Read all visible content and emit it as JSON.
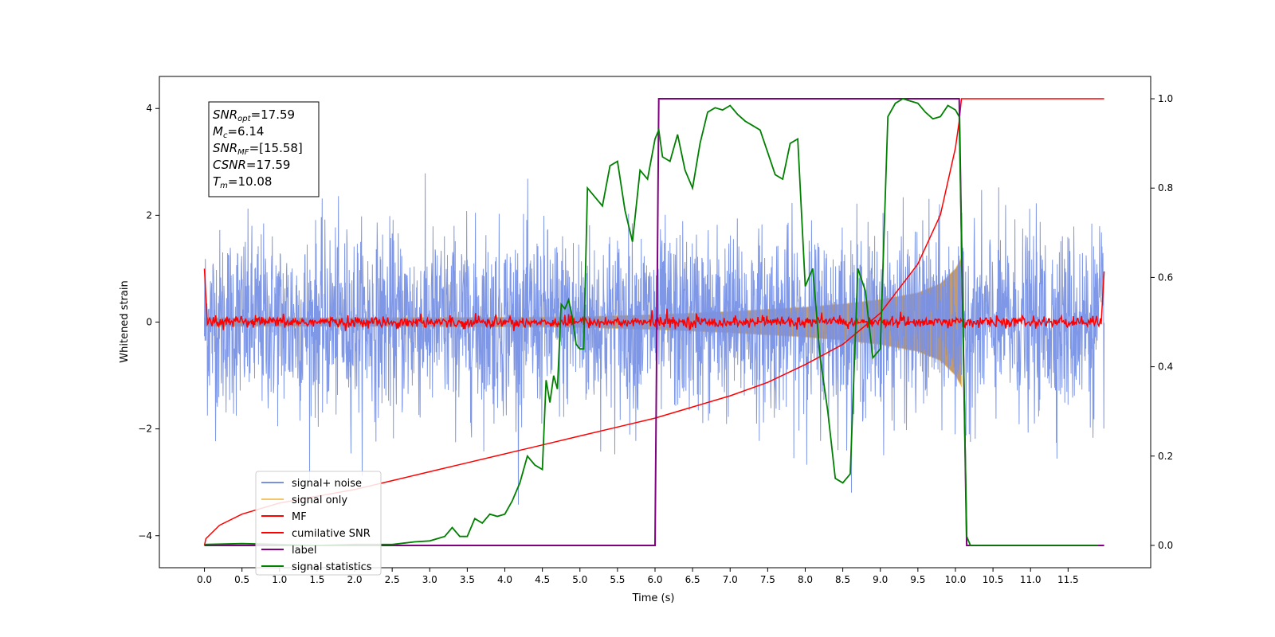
{
  "chart_data": {
    "type": "line",
    "xlabel": "Time (s)",
    "ylabel": "Whitened strain",
    "xlim": [
      -0.6,
      12.6
    ],
    "ylim": [
      -4.6,
      4.6
    ],
    "ylim_right": [
      -0.05,
      1.05
    ],
    "x_ticks": [
      0.0,
      0.5,
      1.0,
      1.5,
      2.0,
      2.5,
      3.0,
      3.5,
      4.0,
      4.5,
      5.0,
      5.5,
      6.0,
      6.5,
      7.0,
      7.5,
      8.0,
      8.5,
      9.0,
      9.5,
      10.0,
      10.5,
      11.0,
      11.5
    ],
    "x_tick_labels": [
      "0.0",
      "0.5",
      "1.0",
      "1.5",
      "2.0",
      "2.5",
      "3.0",
      "3.5",
      "4.0",
      "4.5",
      "5.0",
      "5.5",
      "6.0",
      "6.5",
      "7.0",
      "7.5",
      "8.0",
      "8.5",
      "9.0",
      "9.5",
      "10.0",
      "10.5",
      "11.0",
      "11.5"
    ],
    "y_ticks": [
      -4,
      -2,
      0,
      2,
      4
    ],
    "y_tick_labels": [
      "−4",
      "−2",
      "0",
      "2",
      "4"
    ],
    "y_ticks_right": [
      0.0,
      0.2,
      0.4,
      0.6,
      0.8,
      1.0
    ],
    "y_tick_labels_right": [
      "0.0",
      "0.2",
      "0.4",
      "0.6",
      "0.8",
      "1.0"
    ],
    "annotation": {
      "lines": [
        {
          "sym": "SNR",
          "sub": "opt",
          "val": "=17.59"
        },
        {
          "sym": "M",
          "sub": "c",
          "val": "=6.14"
        },
        {
          "sym": "SNR",
          "sub": "MF",
          "val": "=[15.58]"
        },
        {
          "sym": "CSNR",
          "sub": "",
          "val": "=17.59"
        },
        {
          "sym": "T",
          "sub": "m",
          "val": "=10.08"
        }
      ]
    },
    "legend": {
      "location": "lower-left",
      "entries": [
        {
          "label": "signal+ noise",
          "color": "#7891e6"
        },
        {
          "label": "signal only",
          "color": "#f5c56a"
        },
        {
          "label": "MF",
          "color": "#ff0000"
        },
        {
          "label": "cumilative SNR",
          "color": "#ff0000"
        },
        {
          "label": "label",
          "color": "#800080"
        },
        {
          "label": "signal statistics",
          "color": "#008000"
        }
      ]
    },
    "series": [
      {
        "name": "signal+ noise",
        "axis": "left",
        "color": "#7891e6",
        "noise_std": 0.85,
        "x_range": [
          0.0,
          11.98
        ]
      },
      {
        "name": "signal only",
        "axis": "left",
        "color": "#f5c56a",
        "x_range": [
          0.0,
          10.08
        ],
        "envelope": {
          "x": [
            0.0,
            2.0,
            4.0,
            5.0,
            6.0,
            7.0,
            8.0,
            8.5,
            9.0,
            9.5,
            9.8,
            10.0,
            10.08
          ],
          "y": [
            0.08,
            0.08,
            0.09,
            0.1,
            0.14,
            0.2,
            0.28,
            0.34,
            0.42,
            0.55,
            0.72,
            1.0,
            1.2
          ]
        }
      },
      {
        "name": "MF",
        "axis": "left",
        "color": "#ff0000",
        "noise_std": 0.05,
        "x_range": [
          0.0,
          11.98
        ],
        "edge_values": [
          1.0,
          0.95
        ]
      },
      {
        "name": "cumilative SNR",
        "axis": "right",
        "color": "#ff0000",
        "x": [
          0.0,
          0.02,
          0.2,
          0.5,
          1.0,
          1.5,
          2.0,
          2.5,
          3.0,
          3.5,
          4.0,
          4.5,
          5.0,
          5.5,
          6.0,
          6.5,
          7.0,
          7.5,
          8.0,
          8.5,
          9.0,
          9.5,
          9.8,
          10.0,
          10.05,
          10.08,
          11.98
        ],
        "y": [
          0.0,
          0.015,
          0.045,
          0.07,
          0.095,
          0.11,
          0.125,
          0.145,
          0.165,
          0.185,
          0.205,
          0.225,
          0.245,
          0.265,
          0.285,
          0.31,
          0.335,
          0.365,
          0.405,
          0.45,
          0.52,
          0.63,
          0.74,
          0.89,
          0.95,
          1.0,
          1.0
        ]
      },
      {
        "name": "label",
        "axis": "right",
        "color": "#800080",
        "x": [
          0.0,
          6.0,
          6.05,
          10.05,
          10.15,
          11.98
        ],
        "y": [
          0.0,
          0.0,
          1.0,
          1.0,
          0.0,
          0.0
        ]
      },
      {
        "name": "signal statistics",
        "axis": "right",
        "color": "#008000",
        "x": [
          0.0,
          0.5,
          1.0,
          1.5,
          2.0,
          2.5,
          2.8,
          3.0,
          3.2,
          3.3,
          3.4,
          3.5,
          3.6,
          3.7,
          3.8,
          3.9,
          4.0,
          4.1,
          4.2,
          4.3,
          4.4,
          4.5,
          4.55,
          4.6,
          4.65,
          4.7,
          4.75,
          4.8,
          4.85,
          4.9,
          4.95,
          5.0,
          5.05,
          5.1,
          5.2,
          5.3,
          5.4,
          5.5,
          5.6,
          5.7,
          5.8,
          5.9,
          6.0,
          6.05,
          6.1,
          6.2,
          6.3,
          6.4,
          6.5,
          6.6,
          6.7,
          6.8,
          6.9,
          7.0,
          7.1,
          7.2,
          7.3,
          7.4,
          7.5,
          7.6,
          7.7,
          7.8,
          7.9,
          8.0,
          8.1,
          8.2,
          8.3,
          8.4,
          8.5,
          8.6,
          8.7,
          8.8,
          8.9,
          9.0,
          9.1,
          9.2,
          9.3,
          9.4,
          9.5,
          9.6,
          9.7,
          9.8,
          9.9,
          10.0,
          10.05,
          10.1,
          10.15,
          10.2,
          10.5,
          11.0,
          11.5,
          11.9
        ],
        "y": [
          0.002,
          0.004,
          0.002,
          0.0,
          0.002,
          0.002,
          0.008,
          0.01,
          0.02,
          0.04,
          0.02,
          0.02,
          0.06,
          0.05,
          0.07,
          0.065,
          0.07,
          0.1,
          0.14,
          0.2,
          0.18,
          0.17,
          0.37,
          0.32,
          0.38,
          0.35,
          0.54,
          0.53,
          0.55,
          0.51,
          0.45,
          0.44,
          0.44,
          0.8,
          0.78,
          0.76,
          0.85,
          0.86,
          0.75,
          0.68,
          0.84,
          0.82,
          0.91,
          0.93,
          0.87,
          0.86,
          0.92,
          0.84,
          0.8,
          0.9,
          0.97,
          0.98,
          0.975,
          0.985,
          0.965,
          0.95,
          0.94,
          0.93,
          0.88,
          0.83,
          0.82,
          0.9,
          0.91,
          0.58,
          0.62,
          0.42,
          0.3,
          0.15,
          0.14,
          0.16,
          0.62,
          0.57,
          0.42,
          0.44,
          0.96,
          0.99,
          1.0,
          0.995,
          0.99,
          0.97,
          0.955,
          0.96,
          0.985,
          0.975,
          0.96,
          0.5,
          0.02,
          0.0,
          0.0,
          0.0,
          0.0,
          0.0
        ]
      }
    ]
  }
}
